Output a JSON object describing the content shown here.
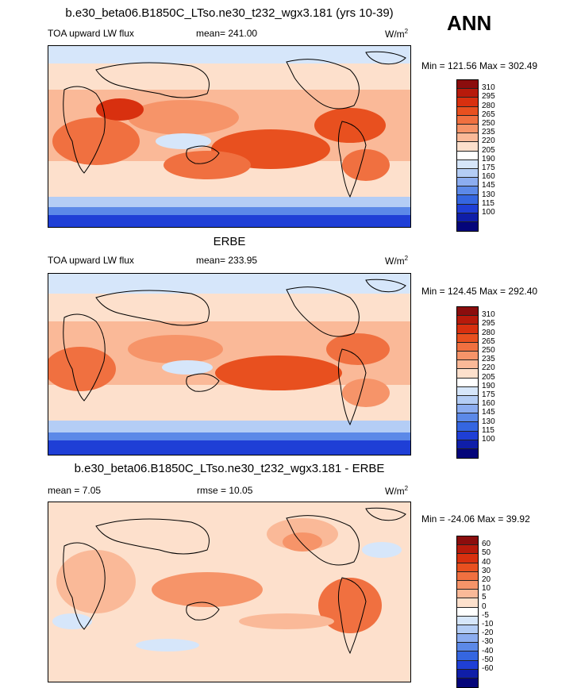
{
  "season": "ANN",
  "units_base": "W/m",
  "units_exp": "2",
  "panels": [
    {
      "title": "b.e30_beta06.B1850C_LTso.ne30_t232_wgx3.181 (yrs 10-39)",
      "variable": "TOA upward LW flux",
      "stat1": "mean= 241.00",
      "stat2": "",
      "minmax": "Min = 121.56 Max = 302.49",
      "levels": [
        "310",
        "295",
        "280",
        "265",
        "250",
        "235",
        "220",
        "205",
        "190",
        "175",
        "160",
        "145",
        "130",
        "115",
        "100"
      ],
      "colors": [
        "#8b0d0d",
        "#b71a0b",
        "#d8300f",
        "#e8501f",
        "#f07040",
        "#f69469",
        "#fab998",
        "#fde0cc",
        "#ffffff",
        "#d6e6fa",
        "#b4cdf5",
        "#8cadf0",
        "#5c89e8",
        "#3566e0",
        "#1f3fd6",
        "#0f1ea8",
        "#04057a"
      ]
    },
    {
      "title": "ERBE",
      "variable": "TOA upward LW flux",
      "stat1": "mean= 233.95",
      "stat2": "",
      "minmax": "Min = 124.45 Max = 292.40",
      "levels": [
        "310",
        "295",
        "280",
        "265",
        "250",
        "235",
        "220",
        "205",
        "190",
        "175",
        "160",
        "145",
        "130",
        "115",
        "100"
      ],
      "colors": [
        "#8b0d0d",
        "#b71a0b",
        "#d8300f",
        "#e8501f",
        "#f07040",
        "#f69469",
        "#fab998",
        "#fde0cc",
        "#ffffff",
        "#d6e6fa",
        "#b4cdf5",
        "#8cadf0",
        "#5c89e8",
        "#3566e0",
        "#1f3fd6",
        "#0f1ea8",
        "#04057a"
      ]
    },
    {
      "title": "b.e30_beta06.B1850C_LTso.ne30_t232_wgx3.181 - ERBE",
      "variable": "",
      "stat1": "mean =   7.05",
      "stat2": "rmse =  10.05",
      "minmax": "Min = -24.06 Max =  39.92",
      "levels": [
        "60",
        "50",
        "40",
        "30",
        "20",
        "10",
        "5",
        "0",
        "-5",
        "-10",
        "-20",
        "-30",
        "-40",
        "-50",
        "-60"
      ],
      "colors": [
        "#8b0d0d",
        "#b71a0b",
        "#d8300f",
        "#e8501f",
        "#f07040",
        "#f69469",
        "#fab998",
        "#fde0cc",
        "#ffffff",
        "#d6e6fa",
        "#b4cdf5",
        "#8cadf0",
        "#5c89e8",
        "#3566e0",
        "#1f3fd6",
        "#0f1ea8",
        "#04057a"
      ]
    }
  ]
}
